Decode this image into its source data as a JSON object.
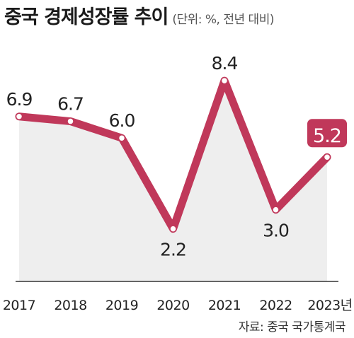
{
  "title": "중국 경제성장률 추이",
  "unit_note": "(단위: %, 전년 대비)",
  "source": "자료: 중국 국가통계국",
  "chart_data": {
    "type": "line",
    "title": "중국 경제성장률 추이",
    "xlabel": "",
    "ylabel": "",
    "categories": [
      "2017",
      "2018",
      "2019",
      "2020",
      "2021",
      "2022",
      "2023년"
    ],
    "series": [
      {
        "values": [
          6.9,
          6.7,
          6.0,
          2.2,
          8.4,
          3.0,
          5.2
        ]
      }
    ],
    "data_labels": [
      "6.9",
      "6.7",
      "6.0",
      "2.2",
      "8.4",
      "3.0",
      "5.2"
    ],
    "highlight_index": 6,
    "ylim": [
      0,
      8.4
    ],
    "grid": false,
    "colors": {
      "line": "#c0385a",
      "fill": "#eeeeee",
      "highlight_label_bg": "#c0385a",
      "axis": "#333333"
    }
  }
}
